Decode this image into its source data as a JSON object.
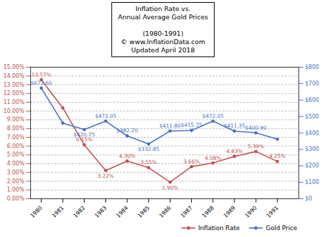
{
  "chart_data": {
    "type": "line",
    "title": "Inflation Rate vs.\nAnnual Average Gold Prices\n\n(1980-1991)\n© www.InflationData.com\nUpdated April 2018",
    "x": [
      1980,
      1981,
      1982,
      1983,
      1984,
      1985,
      1986,
      1987,
      1988,
      1989,
      1990,
      1991
    ],
    "xlim": [
      1979.5,
      1992.0
    ],
    "xticks": [
      1980,
      1981,
      1982,
      1983,
      1984,
      1985,
      1986,
      1987,
      1988,
      1989,
      1990,
      1991
    ],
    "ylim": [
      0,
      15
    ],
    "yticks": [
      {
        "value": 0,
        "label": "0.00%"
      },
      {
        "value": 1,
        "label": "1.00%"
      },
      {
        "value": 2,
        "label": "2.00%"
      },
      {
        "value": 3,
        "label": "3.00%"
      },
      {
        "value": 4,
        "label": "4.00%"
      },
      {
        "value": 5,
        "label": "5.00%"
      },
      {
        "value": 6,
        "label": "6.00%"
      },
      {
        "value": 7,
        "label": "7.00%"
      },
      {
        "value": 8,
        "label": "8.00%"
      },
      {
        "value": 9,
        "label": "9.00%"
      },
      {
        "value": 10,
        "label": "10.00%"
      },
      {
        "value": 11,
        "label": "11.00%"
      },
      {
        "value": 12,
        "label": "12.00%"
      },
      {
        "value": 13,
        "label": "13.00%"
      },
      {
        "value": 14,
        "label": "14.00%"
      },
      {
        "value": 15,
        "label": "15.00%"
      }
    ],
    "y2lim": [
      0,
      800
    ],
    "y2ticks": [
      {
        "value": 0,
        "label": "$0"
      },
      {
        "value": 100,
        "label": "$100"
      },
      {
        "value": 200,
        "label": "$200"
      },
      {
        "value": 300,
        "label": "$300"
      },
      {
        "value": 400,
        "label": "$400"
      },
      {
        "value": 500,
        "label": "$500"
      },
      {
        "value": 600,
        "label": "$600"
      },
      {
        "value": 700,
        "label": "$700"
      },
      {
        "value": 800,
        "label": "$800"
      }
    ],
    "grid": true,
    "legend": "lower right",
    "series": [
      {
        "name": "Inflation Rate",
        "color": "#c0504d",
        "marker": "o",
        "values": [
          13.57,
          10.35,
          6.15,
          3.22,
          4.3,
          3.55,
          1.9,
          3.66,
          4.08,
          4.83,
          5.39,
          4.25
        ]
      },
      {
        "name": "Gold Price",
        "color": "#4472c4",
        "marker": "o",
        "axis": "y2",
        "values": [
          672.6,
          460.0,
          420.75,
          472.05,
          382.2,
          332.85,
          411.8,
          415.75,
          472.05,
          411.35,
          400.9,
          362.11
        ]
      }
    ],
    "annotations": [
      {
        "x": 1980,
        "y": 13.57,
        "text": "13.57%",
        "axis": "y"
      },
      {
        "x": 1982,
        "y": 6.15,
        "text": "6.15%",
        "axis": "y"
      },
      {
        "x": 1983,
        "y": 3.22,
        "text": "3.22%",
        "axis": "y"
      },
      {
        "x": 1984,
        "y": 4.3,
        "text": "4.30%",
        "axis": "y"
      },
      {
        "x": 1985,
        "y": 3.55,
        "text": "3.55%",
        "axis": "y"
      },
      {
        "x": 1986,
        "y": 1.9,
        "text": "1.90%",
        "axis": "y"
      },
      {
        "x": 1987,
        "y": 3.66,
        "text": "3.66%",
        "axis": "y"
      },
      {
        "x": 1988,
        "y": 4.08,
        "text": "4.08%",
        "axis": "y"
      },
      {
        "x": 1989,
        "y": 4.83,
        "text": "4.83%",
        "axis": "y"
      },
      {
        "x": 1990,
        "y": 5.39,
        "text": "5.39%",
        "axis": "y"
      },
      {
        "x": 1991,
        "y": 4.25,
        "text": "4.25%",
        "axis": "y"
      },
      {
        "x": 1980,
        "y": 672.6,
        "text": "$672.60",
        "axis": "y2"
      },
      {
        "x": 1982,
        "y": 420.75,
        "text": "$420.75",
        "axis": "y2"
      },
      {
        "x": 1983,
        "y": 472.05,
        "text": "$472.05",
        "axis": "y2"
      },
      {
        "x": 1984,
        "y": 382.2,
        "text": "$382.20",
        "axis": "y2"
      },
      {
        "x": 1985,
        "y": 332.85,
        "text": "$332.85",
        "axis": "y2"
      },
      {
        "x": 1986,
        "y": 411.8,
        "text": "$411.80",
        "axis": "y2"
      },
      {
        "x": 1987,
        "y": 415.75,
        "text": "$415.75",
        "axis": "y2"
      },
      {
        "x": 1988,
        "y": 472.05,
        "text": "$472.05",
        "axis": "y2"
      },
      {
        "x": 1989,
        "y": 411.35,
        "text": "$411.35",
        "axis": "y2"
      },
      {
        "x": 1990,
        "y": 400.9,
        "text": "$400.90",
        "axis": "y2"
      }
    ]
  }
}
